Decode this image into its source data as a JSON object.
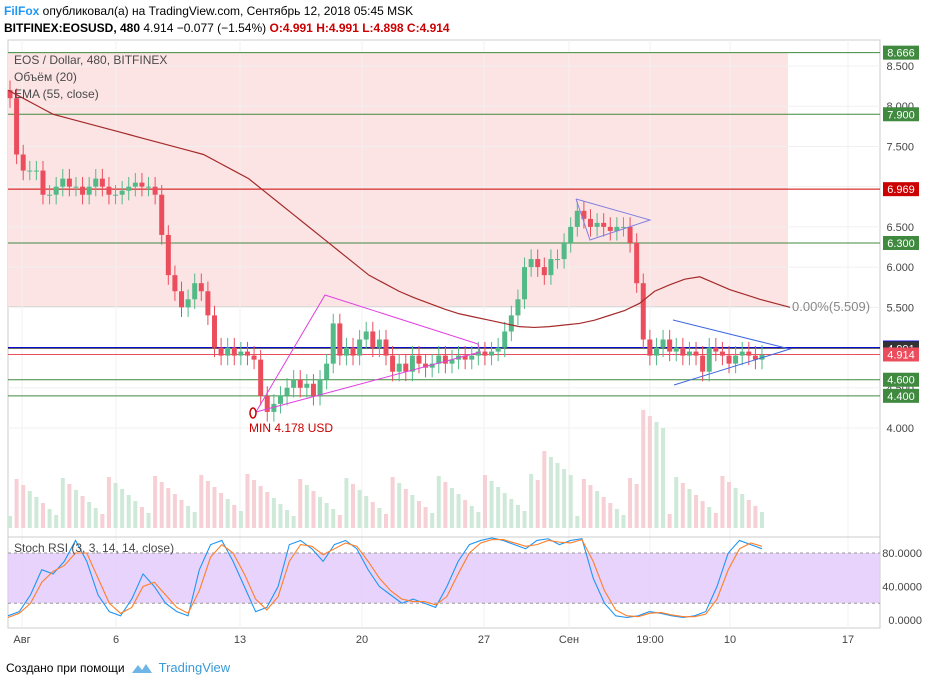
{
  "header": {
    "user": "FilFox",
    "published": " опубликовал(а) на TradingView.com, Сентябрь 12, 2018 05:45 MSK",
    "symbol": "BITFINEX:EOSUSD, 480",
    "last": "4.914",
    "change": "−0.077 (−1.54%)",
    "ohlc": "O:4.991 H:4.991 L:4.898 C:4.914"
  },
  "legend": {
    "title": "EOS / Dollar, 480, BITFINEX",
    "volume": "Объём (20)",
    "ema": "EMA (55, close)"
  },
  "annotations": {
    "min_label": "MIN 4.178 USD",
    "fib_label": "0.00%(5.509)"
  },
  "stoch": {
    "label": "Stoch RSI (3, 3, 14, 14, close)"
  },
  "footer": {
    "created": "Создано при помощи",
    "brand": "TradingView"
  },
  "colors": {
    "up": "#53b987",
    "down": "#eb4d5c",
    "ema": "#a52a2a",
    "zone": "#fce4e4",
    "rsi_band": "#e1c8fa",
    "pattern1": "#e040e0",
    "pattern2": "#4169e1"
  },
  "chart_data": [
    {
      "type": "candlestick",
      "title": "EOS / Dollar, 480, BITFINEX",
      "x_ticks": [
        "Авг",
        "6",
        "13",
        "20",
        "27",
        "Сен",
        "19:00",
        "10",
        "17"
      ],
      "y_ticks": [
        "4.000",
        "4.500",
        "5.000",
        "5.500",
        "6.000",
        "6.500",
        "7.000",
        "7.500",
        "8.000",
        "8.500"
      ],
      "ylim": [
        2.6,
        8.8
      ],
      "levels": [
        {
          "value": 8.666,
          "label": "8.666",
          "color": "#3f8a3f"
        },
        {
          "value": 7.9,
          "label": "7.900",
          "color": "#3f8a3f"
        },
        {
          "value": 6.969,
          "label": "6.969",
          "color": "#cc0000"
        },
        {
          "value": 6.3,
          "label": "6.300",
          "color": "#3f8a3f"
        },
        {
          "value": 5.0,
          "label": "5.000",
          "color": "#0000ff"
        },
        {
          "value": 4.991,
          "label": "4.991",
          "color": "#333333"
        },
        {
          "value": 4.914,
          "label": "4.914",
          "color": "#eb4d5c"
        },
        {
          "value": 4.6,
          "label": "4.600",
          "color": "#3f8a3f"
        },
        {
          "value": 4.4,
          "label": "4.400",
          "color": "#3f8a3f"
        }
      ],
      "close": [
        8.1,
        7.4,
        7.2,
        7.2,
        7.2,
        6.9,
        6.9,
        7.0,
        7.1,
        7.0,
        7.0,
        6.9,
        7.0,
        7.1,
        7.0,
        6.9,
        6.9,
        6.95,
        7.0,
        7.05,
        7.0,
        7.0,
        6.9,
        6.4,
        5.9,
        5.7,
        5.5,
        5.6,
        5.8,
        5.7,
        5.4,
        5.0,
        4.9,
        5.0,
        4.9,
        4.95,
        4.9,
        4.85,
        4.4,
        4.2,
        4.3,
        4.4,
        4.5,
        4.6,
        4.5,
        4.55,
        4.4,
        4.6,
        4.8,
        5.3,
        4.9,
        5.0,
        4.9,
        5.1,
        5.2,
        5.0,
        5.1,
        4.9,
        4.7,
        4.8,
        4.7,
        4.9,
        4.8,
        4.75,
        4.8,
        4.9,
        4.8,
        4.85,
        4.9,
        4.85,
        4.9,
        4.95,
        4.9,
        4.95,
        5.0,
        5.2,
        5.4,
        5.6,
        6.0,
        6.1,
        6.0,
        5.9,
        6.1,
        6.1,
        6.3,
        6.5,
        6.7,
        6.6,
        6.5,
        6.55,
        6.5,
        6.45,
        6.5,
        6.5,
        6.3,
        5.8,
        5.1,
        4.9,
        5.0,
        5.1,
        4.95,
        5.0,
        4.9,
        4.95,
        4.9,
        4.7,
        5.0,
        4.95,
        4.9,
        4.8,
        4.9,
        4.95,
        4.9,
        4.85,
        4.91
      ],
      "ema55": [
        8.2,
        8.1,
        8.0,
        7.9,
        7.85,
        7.8,
        7.75,
        7.7,
        7.65,
        7.6,
        7.55,
        7.5,
        7.45,
        7.4,
        7.3,
        7.2,
        7.1,
        6.95,
        6.8,
        6.65,
        6.5,
        6.35,
        6.2,
        6.05,
        5.9,
        5.8,
        5.7,
        5.62,
        5.55,
        5.48,
        5.42,
        5.38,
        5.34,
        5.3,
        5.26,
        5.25,
        5.26,
        5.28,
        5.3,
        5.34,
        5.4,
        5.46,
        5.55,
        5.7,
        5.78,
        5.85,
        5.88,
        5.8,
        5.72,
        5.66,
        5.6,
        5.55,
        5.5
      ],
      "volume_avg_label": "Объём (20)"
    },
    {
      "type": "line",
      "title": "Stoch RSI (3, 3, 14, 14, close)",
      "y_ticks": [
        "0.0000",
        "40.0000",
        "80.0000"
      ],
      "ylim": [
        -5,
        100
      ],
      "bands": [
        20,
        80
      ],
      "series": [
        {
          "values": [
            5,
            10,
            30,
            60,
            55,
            70,
            95,
            70,
            30,
            10,
            5,
            25,
            55,
            40,
            20,
            10,
            5,
            60,
            90,
            95,
            70,
            40,
            10,
            15,
            40,
            90,
            95,
            85,
            70,
            90,
            95,
            85,
            60,
            40,
            30,
            20,
            25,
            20,
            15,
            40,
            70,
            90,
            95,
            98,
            95,
            90,
            85,
            95,
            97,
            90,
            95,
            97,
            50,
            20,
            5,
            3,
            5,
            10,
            8,
            5,
            3,
            5,
            10,
            40,
            80,
            95,
            90,
            85
          ]
        },
        {
          "values": [
            3,
            8,
            20,
            45,
            58,
            65,
            80,
            80,
            50,
            20,
            8,
            15,
            40,
            45,
            30,
            15,
            8,
            35,
            75,
            90,
            80,
            55,
            25,
            12,
            28,
            70,
            90,
            88,
            78,
            85,
            92,
            88,
            70,
            50,
            35,
            25,
            22,
            22,
            18,
            28,
            55,
            80,
            92,
            96,
            96,
            92,
            88,
            90,
            95,
            93,
            92,
            96,
            70,
            35,
            12,
            5,
            4,
            8,
            9,
            6,
            4,
            4,
            7,
            25,
            60,
            85,
            92,
            88
          ]
        }
      ]
    }
  ]
}
